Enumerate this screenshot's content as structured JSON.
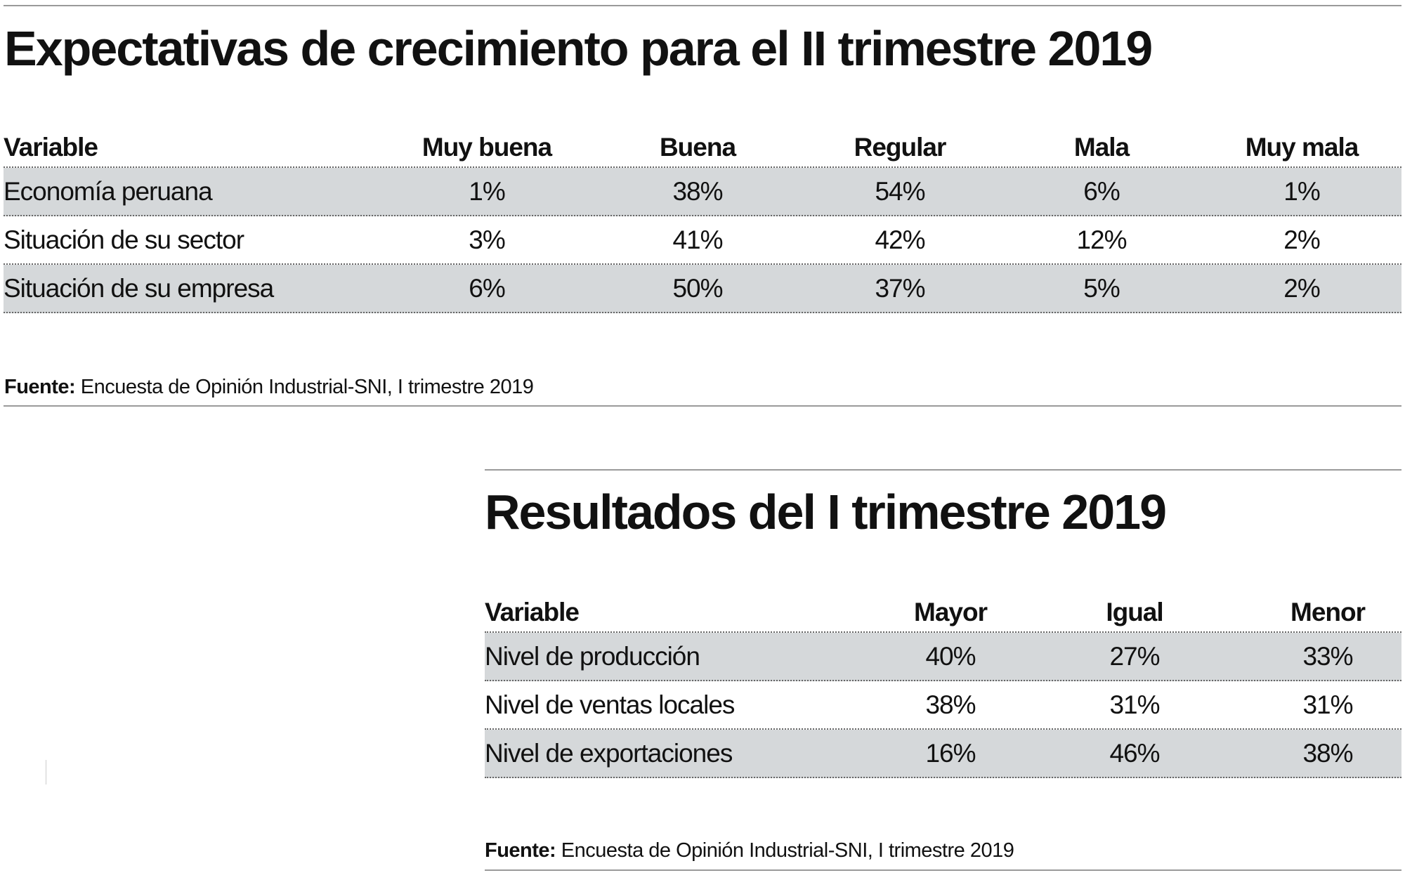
{
  "table1": {
    "title": "Expectativas de crecimiento para el II trimestre 2019",
    "columns": [
      "Variable",
      "Muy buena",
      "Buena",
      "Regular",
      "Mala",
      "Muy mala"
    ],
    "rows": [
      [
        "Economía peruana",
        "1%",
        "38%",
        "54%",
        "6%",
        "1%"
      ],
      [
        "Situación de su sector",
        "3%",
        "41%",
        "42%",
        "12%",
        "2%"
      ],
      [
        "Situación de su empresa",
        "6%",
        "50%",
        "37%",
        "5%",
        "2%"
      ]
    ],
    "source_label": "Fuente:",
    "source_text": "Encuesta de Opinión Industrial-SNI, I trimestre 2019"
  },
  "table2": {
    "title": "Resultados del I trimestre 2019",
    "columns": [
      "Variable",
      "Mayor",
      "Igual",
      "Menor"
    ],
    "rows": [
      [
        "Nivel de producción",
        "40%",
        "27%",
        "33%"
      ],
      [
        "Nivel de ventas locales",
        "38%",
        "31%",
        "31%"
      ],
      [
        "Nivel de exportaciones",
        "16%",
        "46%",
        "38%"
      ]
    ],
    "source_label": "Fuente:",
    "source_text": "Encuesta de Opinión Industrial-SNI, I trimestre 2019"
  },
  "colors": {
    "row_shade": "#d5d8da",
    "rule": "#9a9a9a"
  }
}
